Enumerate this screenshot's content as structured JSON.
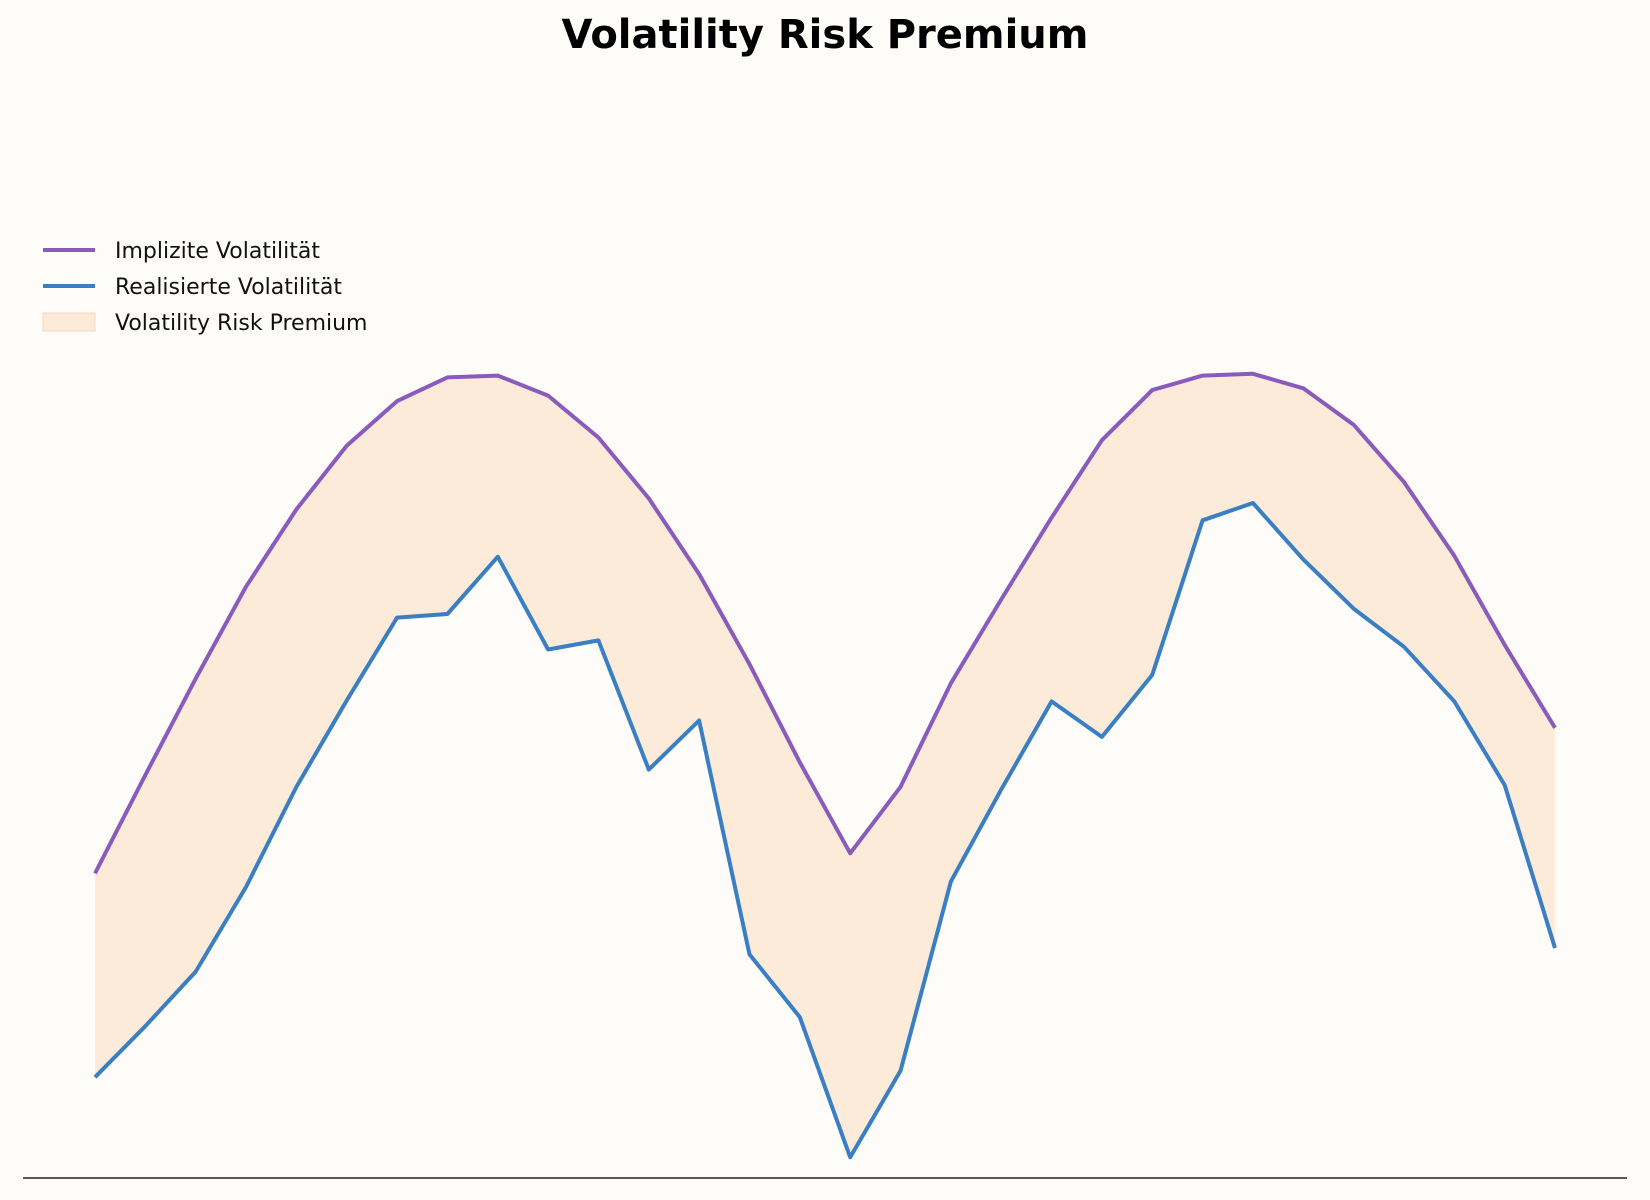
{
  "chart_data": {
    "type": "line",
    "title": "Volatility Risk Premium",
    "xlabel": "",
    "ylabel": "",
    "grid": false,
    "legend_position": "top-left",
    "x": [
      0,
      1,
      2,
      3,
      4,
      5,
      6,
      7,
      8,
      9,
      10,
      11,
      12,
      13,
      14,
      15,
      16,
      17,
      18,
      19,
      20,
      21,
      22,
      23,
      24,
      25,
      26,
      27,
      28,
      29
    ],
    "ylim": [
      0,
      100
    ],
    "series": [
      {
        "name": "Implizite Volatilität",
        "color": "#8a5bbd",
        "values": [
          30.4,
          41.2,
          51.8,
          61.9,
          70.4,
          77.4,
          82.3,
          84.9,
          85.1,
          82.9,
          78.3,
          71.6,
          63.3,
          53.4,
          42.6,
          32.6,
          39.9,
          51.3,
          60.5,
          69.5,
          78.0,
          83.5,
          85.1,
          85.3,
          83.7,
          79.7,
          73.4,
          65.3,
          55.5,
          46.4
        ],
        "style": "line"
      },
      {
        "name": "Realisierte Volatilität",
        "color": "#3a7fc3",
        "values": [
          8.0,
          13.6,
          19.6,
          28.9,
          39.9,
          49.4,
          58.5,
          58.9,
          65.2,
          55.0,
          56.0,
          41.8,
          47.2,
          21.5,
          14.6,
          -0.8,
          8.7,
          29.5,
          39.6,
          49.3,
          45.4,
          52.2,
          69.2,
          71.1,
          64.9,
          59.5,
          55.3,
          49.3,
          40.1,
          22.2
        ],
        "style": "line"
      },
      {
        "name": "Volatility Risk Premium",
        "color": "#fcebd9",
        "type": "area-between",
        "style": "fill"
      }
    ]
  }
}
